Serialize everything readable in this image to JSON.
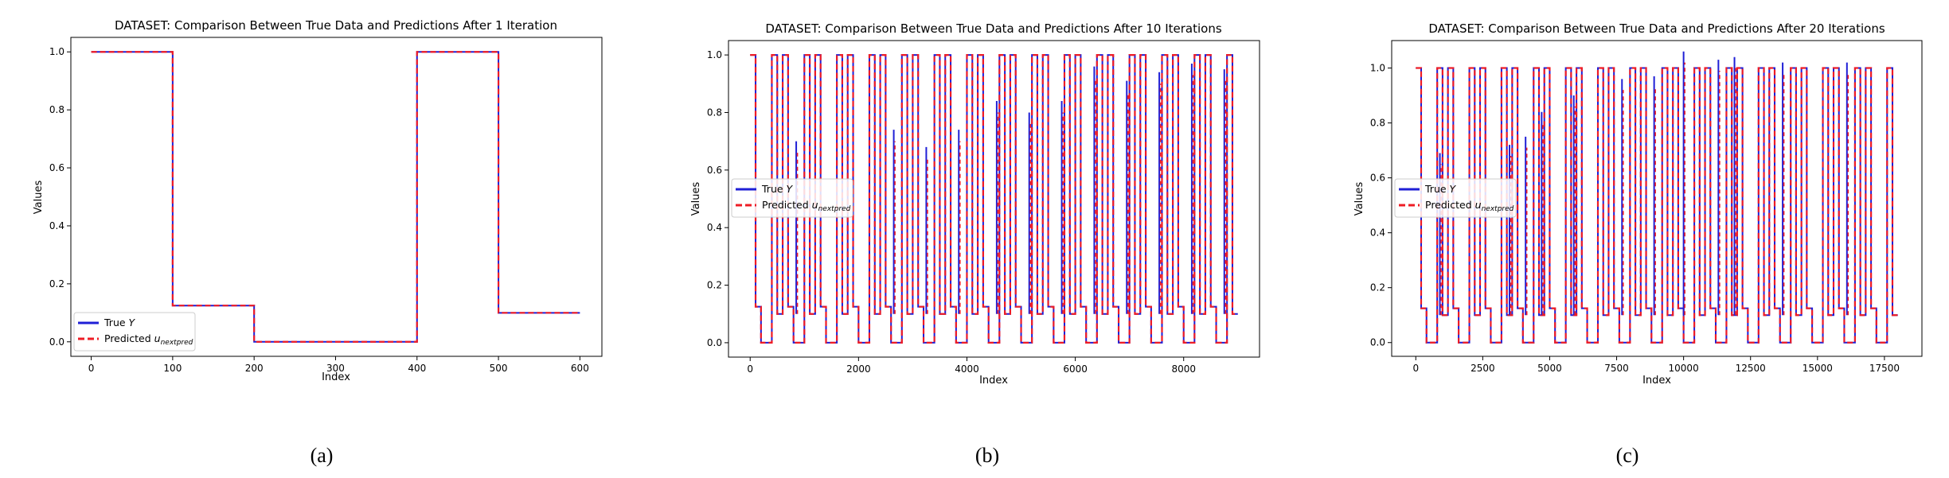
{
  "figure": {
    "captions": [
      "(a)",
      "(b)",
      "(c)"
    ]
  },
  "colors": {
    "true": "#1f1fd6",
    "pred": "#ee1c25"
  },
  "chart_data": [
    {
      "type": "line",
      "title": "DATASET: Comparison Between True Data and Predictions After 1 Iteration",
      "xlabel": "Index",
      "ylabel": "Values",
      "xlim": [
        -25,
        627
      ],
      "ylim": [
        -0.05,
        1.05
      ],
      "xticks": [
        0,
        100,
        200,
        300,
        400,
        500,
        600
      ],
      "xtick_labels": [
        "0",
        "100",
        "200",
        "300",
        "400",
        "500",
        "600"
      ],
      "yticks": [
        0.0,
        0.2,
        0.4,
        0.6,
        0.8,
        1.0
      ],
      "ytick_labels": [
        "0.0",
        "0.2",
        "0.4",
        "0.6",
        "0.8",
        "1.0"
      ],
      "legend": {
        "location": "lower-left",
        "entries": [
          "True Y",
          "Predicted u_nextpred"
        ]
      },
      "series": [
        {
          "name": "True Y",
          "style": "solid",
          "x": [
            0,
            100,
            100,
            200,
            200,
            400,
            400,
            500,
            500,
            600
          ],
          "y": [
            1.0,
            1.0,
            0.125,
            0.125,
            0.0,
            0.0,
            1.0,
            1.0,
            0.1,
            0.1
          ]
        },
        {
          "name": "Predicted u_nextpred",
          "style": "dashed",
          "x": [
            0,
            100,
            100,
            200,
            200,
            400,
            400,
            500,
            500,
            600
          ],
          "y": [
            1.0,
            1.0,
            0.125,
            0.125,
            0.0,
            0.0,
            1.0,
            1.0,
            0.1,
            0.1
          ]
        }
      ]
    },
    {
      "type": "line",
      "title": "DATASET: Comparison Between True Data and Predictions After 10 Iterations",
      "xlabel": "Index",
      "ylabel": "Values",
      "xlim": [
        -400,
        9400
      ],
      "ylim": [
        -0.05,
        1.05
      ],
      "xticks": [
        0,
        2000,
        4000,
        6000,
        8000
      ],
      "xtick_labels": [
        "0",
        "2000",
        "4000",
        "6000",
        "8000"
      ],
      "yticks": [
        0.0,
        0.2,
        0.4,
        0.6,
        0.8,
        1.0
      ],
      "ytick_labels": [
        "0.0",
        "0.2",
        "0.4",
        "0.6",
        "0.8",
        "1.0"
      ],
      "legend": {
        "location": "center-left",
        "entries": [
          "True Y",
          "Predicted u_nextpred"
        ]
      },
      "pattern": {
        "x_start": 0,
        "x_end": 9000,
        "step": 100,
        "level_sequence": [
          1.0,
          0.125,
          0.0,
          0.0,
          1.0,
          0.1
        ],
        "spikes": [
          {
            "x": 850,
            "y": 0.7
          },
          {
            "x": 2650,
            "y": 0.74
          },
          {
            "x": 3250,
            "y": 0.68
          },
          {
            "x": 3850,
            "y": 0.74
          },
          {
            "x": 4550,
            "y": 0.84
          },
          {
            "x": 5150,
            "y": 0.8
          },
          {
            "x": 5750,
            "y": 0.84
          },
          {
            "x": 6350,
            "y": 0.96
          },
          {
            "x": 6950,
            "y": 0.91
          },
          {
            "x": 7550,
            "y": 0.94
          },
          {
            "x": 8150,
            "y": 0.97
          },
          {
            "x": 8750,
            "y": 0.95
          }
        ]
      }
    },
    {
      "type": "line",
      "title": "DATASET: Comparison Between True Data and Predictions After 20 Iterations",
      "xlabel": "Index",
      "ylabel": "Values",
      "xlim": [
        -900,
        18900
      ],
      "ylim": [
        -0.05,
        1.1
      ],
      "xticks": [
        0,
        2500,
        5000,
        7500,
        10000,
        12500,
        15000,
        17500
      ],
      "xtick_labels": [
        "0",
        "2500",
        "5000",
        "7500",
        "10000",
        "12500",
        "15000",
        "17500"
      ],
      "yticks": [
        0.0,
        0.2,
        0.4,
        0.6,
        0.8,
        1.0
      ],
      "ytick_labels": [
        "0.0",
        "0.2",
        "0.4",
        "0.6",
        "0.8",
        "1.0"
      ],
      "legend": {
        "location": "center-left",
        "entries": [
          "True Y",
          "Predicted u_nextpred"
        ]
      },
      "pattern": {
        "x_start": 0,
        "x_end": 18000,
        "step": 200,
        "level_sequence": [
          1.0,
          0.125,
          0.0,
          0.0,
          1.0,
          0.1
        ],
        "spikes": [
          {
            "x": 900,
            "y": 0.69
          },
          {
            "x": 3500,
            "y": 0.72
          },
          {
            "x": 4100,
            "y": 0.75
          },
          {
            "x": 4700,
            "y": 0.84
          },
          {
            "x": 5900,
            "y": 0.9
          },
          {
            "x": 7700,
            "y": 0.96
          },
          {
            "x": 8900,
            "y": 0.97
          },
          {
            "x": 10000,
            "y": 1.06
          },
          {
            "x": 11300,
            "y": 1.03
          },
          {
            "x": 11900,
            "y": 1.04
          },
          {
            "x": 13700,
            "y": 1.02
          },
          {
            "x": 16100,
            "y": 1.02
          }
        ]
      }
    }
  ]
}
